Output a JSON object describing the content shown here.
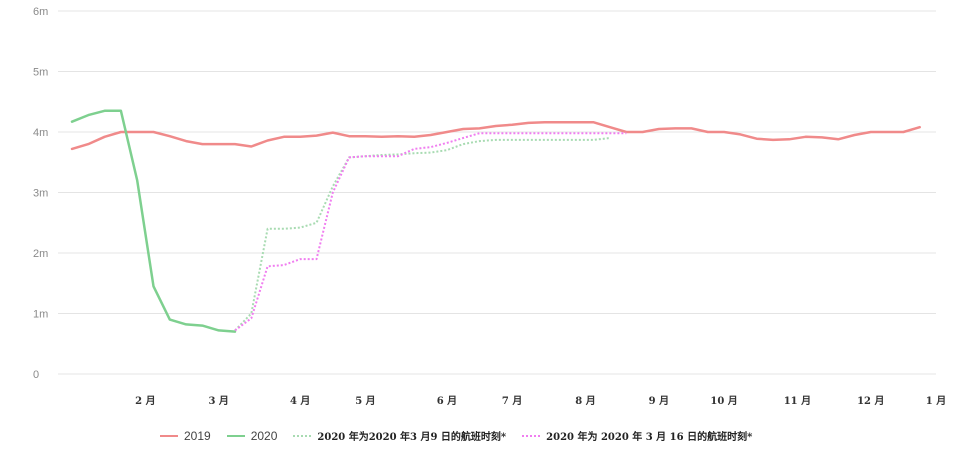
{
  "chart_data": {
    "type": "line",
    "title": "",
    "xlabel": "",
    "ylabel": "",
    "ylim": [
      0,
      6
    ],
    "yticks": [
      {
        "v": 0,
        "label": "0"
      },
      {
        "v": 1,
        "label": "1m"
      },
      {
        "v": 2,
        "label": "2m"
      },
      {
        "v": 3,
        "label": "3m"
      },
      {
        "v": 4,
        "label": "4m"
      },
      {
        "v": 5,
        "label": "5m"
      },
      {
        "v": 6,
        "label": "6m"
      }
    ],
    "xlim": [
      0,
      53
    ],
    "xticks": [
      {
        "v": 4.5,
        "label": "2 月"
      },
      {
        "v": 9,
        "label": "3 月"
      },
      {
        "v": 14,
        "label": "4 月"
      },
      {
        "v": 18,
        "label": "5 月"
      },
      {
        "v": 23,
        "label": "6 月"
      },
      {
        "v": 27,
        "label": "7 月"
      },
      {
        "v": 31.5,
        "label": "8 月"
      },
      {
        "v": 36,
        "label": "9 月"
      },
      {
        "v": 40,
        "label": "10 月"
      },
      {
        "v": 44.5,
        "label": "11 月"
      },
      {
        "v": 49,
        "label": "12 月"
      },
      {
        "v": 53,
        "label": "1 月"
      }
    ],
    "grid": true,
    "legend_position": "bottom",
    "series": [
      {
        "name": "2019",
        "color": "#f08a8a",
        "style": "solid",
        "x": [
          0,
          1,
          2,
          3,
          4,
          5,
          6,
          7,
          8,
          9,
          10,
          11,
          12,
          13,
          14,
          15,
          16,
          17,
          18,
          19,
          20,
          21,
          22,
          23,
          24,
          25,
          26,
          27,
          28,
          29,
          30,
          31,
          32,
          33,
          34,
          35,
          36,
          37,
          38,
          39,
          40,
          41,
          42,
          43,
          44,
          45,
          46,
          47,
          48,
          49,
          50,
          51,
          52
        ],
        "y": [
          3.72,
          3.8,
          3.92,
          4.0,
          4.0,
          4.0,
          3.93,
          3.85,
          3.8,
          3.8,
          3.8,
          3.76,
          3.86,
          3.92,
          3.92,
          3.94,
          3.99,
          3.93,
          3.93,
          3.92,
          3.93,
          3.92,
          3.95,
          4.0,
          4.05,
          4.06,
          4.1,
          4.12,
          4.15,
          4.16,
          4.16,
          4.16,
          4.16,
          4.08,
          4.0,
          4.0,
          4.05,
          4.06,
          4.06,
          4.0,
          4.0,
          3.96,
          3.89,
          3.87,
          3.88,
          3.92,
          3.91,
          3.88,
          3.95,
          4.0,
          4.0,
          4.0,
          4.08
        ]
      },
      {
        "name": "2020",
        "color": "#7ed08f",
        "style": "solid",
        "x": [
          0,
          1,
          2,
          3,
          4,
          5,
          6,
          7,
          8,
          9,
          10
        ],
        "y": [
          4.17,
          4.28,
          4.35,
          4.35,
          3.2,
          1.45,
          0.9,
          0.82,
          0.8,
          0.72,
          0.7
        ]
      },
      {
        "name": "2020 年为2020 年3 月9 日的航班时刻*",
        "color": "#a8dbb2",
        "style": "dotted",
        "x": [
          10,
          11,
          12,
          13,
          14,
          15,
          16,
          17,
          18,
          19,
          20,
          21,
          22,
          23,
          24,
          25,
          26,
          27,
          28,
          29,
          30,
          31,
          32,
          33
        ],
        "y": [
          0.72,
          1.0,
          2.4,
          2.4,
          2.42,
          2.5,
          3.1,
          3.58,
          3.6,
          3.62,
          3.63,
          3.65,
          3.66,
          3.7,
          3.8,
          3.85,
          3.87,
          3.87,
          3.87,
          3.87,
          3.87,
          3.87,
          3.87,
          3.9
        ]
      },
      {
        "name": "2020 年为 2020 年 3 月 16 日的航班时刻*",
        "color": "#f07ef0",
        "style": "dotted",
        "x": [
          10,
          11,
          12,
          13,
          14,
          15,
          16,
          17,
          18,
          19,
          20,
          21,
          22,
          23,
          24,
          25,
          26,
          27,
          28,
          29,
          30,
          31,
          32,
          33,
          34
        ],
        "y": [
          0.72,
          0.92,
          1.78,
          1.8,
          1.9,
          1.9,
          3.0,
          3.58,
          3.6,
          3.6,
          3.6,
          3.72,
          3.75,
          3.82,
          3.9,
          3.98,
          3.98,
          3.98,
          3.98,
          3.98,
          3.98,
          3.98,
          3.98,
          3.98,
          3.98
        ]
      }
    ]
  }
}
